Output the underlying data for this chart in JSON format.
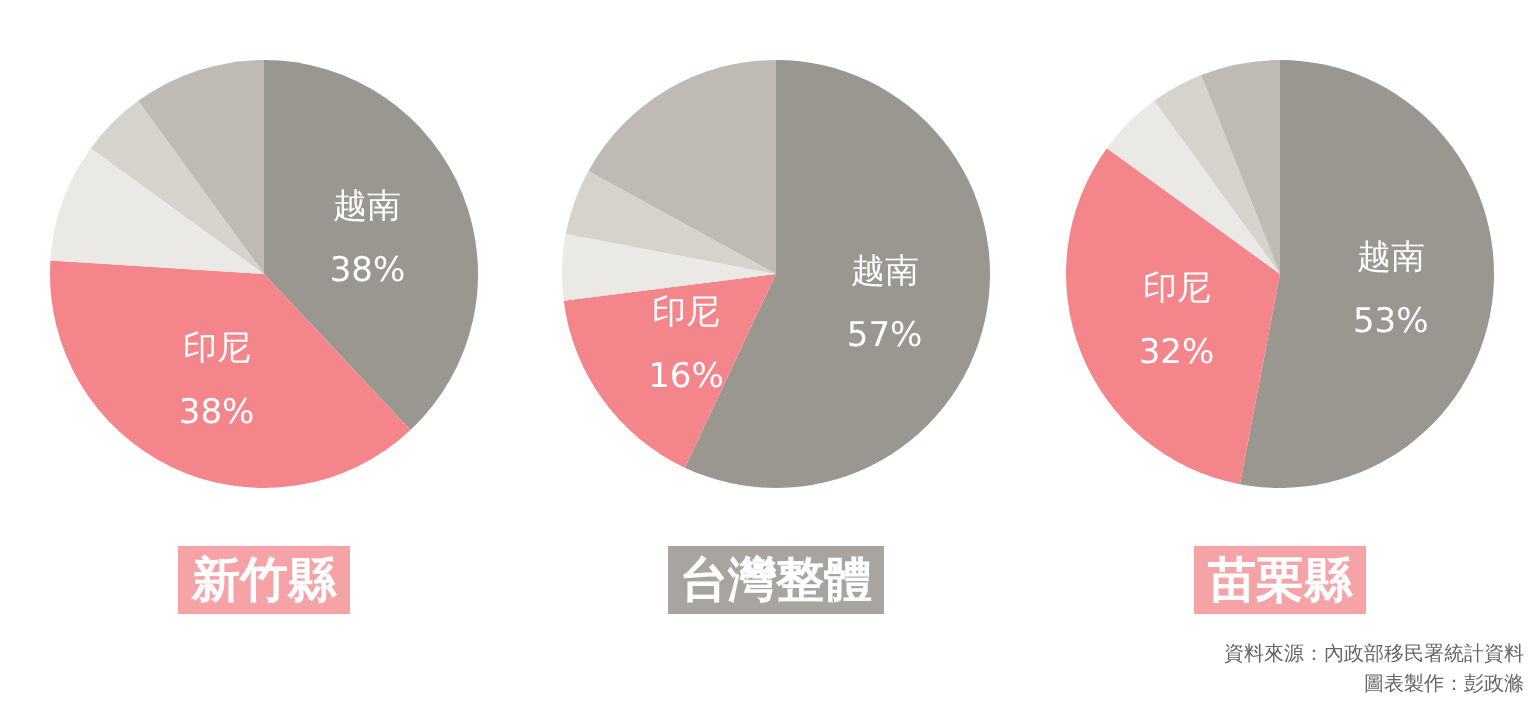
{
  "chart_data": [
    {
      "type": "pie",
      "title": "新竹縣",
      "categories": [
        "越南",
        "印尼",
        null,
        null,
        null
      ],
      "values": [
        38,
        38,
        9,
        5,
        10
      ],
      "value_labels": [
        "38%",
        "38%",
        null,
        null,
        null
      ],
      "colors": [
        "#9a9690",
        "#f4868b",
        "#ebe9e6",
        "#d6d2cc",
        "#bfbbb4"
      ]
    },
    {
      "type": "pie",
      "title": "台灣整體",
      "categories": [
        "越南",
        "印尼",
        null,
        null,
        null
      ],
      "values": [
        57,
        16,
        5,
        5,
        17
      ],
      "value_labels": [
        "57%",
        "16%",
        null,
        null,
        null
      ],
      "colors": [
        "#9a9690",
        "#f4868b",
        "#ebe9e6",
        "#d6d2cc",
        "#bfbbb4"
      ]
    },
    {
      "type": "pie",
      "title": "苗栗縣",
      "categories": [
        "越南",
        "印尼",
        null,
        null,
        null
      ],
      "values": [
        53,
        32,
        5,
        4,
        6
      ],
      "value_labels": [
        "53%",
        "32%",
        null,
        null,
        null
      ],
      "colors": [
        "#9a9690",
        "#f4868b",
        "#ebe9e6",
        "#d6d2cc",
        "#bfbbb4"
      ],
      "annotations": [
        "資料來源：內政部移民署統計資料",
        "圖表製作：彭政滌"
      ]
    }
  ]
}
